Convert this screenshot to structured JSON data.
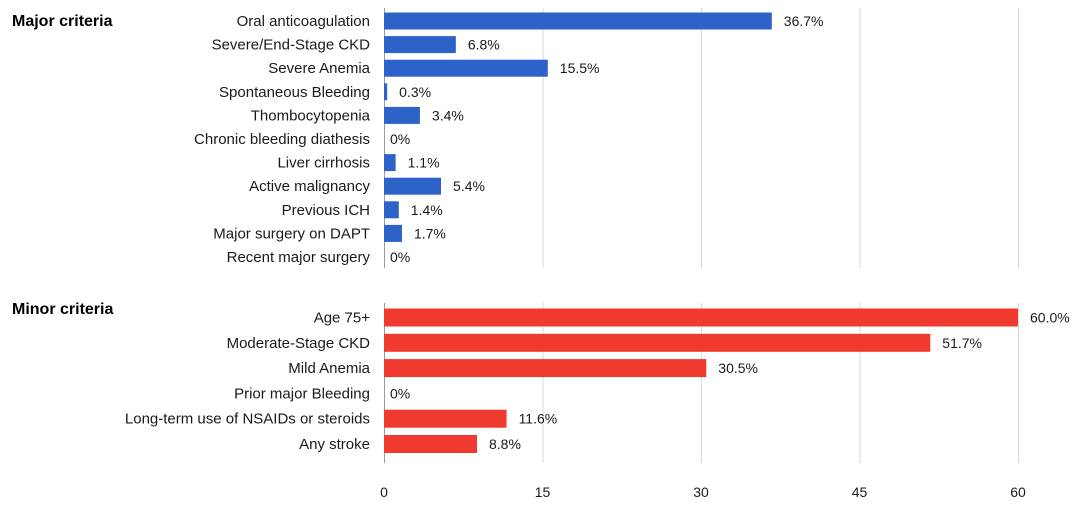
{
  "chart_data": {
    "type": "bar",
    "orientation": "horizontal",
    "x_axis": {
      "min": 0,
      "max": 60,
      "ticks": [
        "0",
        "15",
        "30",
        "45",
        "60"
      ],
      "grid": true
    },
    "panels": [
      {
        "title": "Major criteria",
        "color": "#2d63c8",
        "categories": [
          "Oral anticoagulation",
          "Severe/End-Stage CKD",
          "Severe Anemia",
          "Spontaneous Bleeding",
          "Thombocytopenia",
          "Chronic bleeding diathesis",
          "Liver cirrhosis",
          "Active malignancy",
          "Previous ICH",
          "Major surgery on DAPT",
          "Recent major surgery"
        ],
        "values": [
          36.7,
          6.8,
          15.5,
          0.3,
          3.4,
          0,
          1.1,
          5.4,
          1.4,
          1.7,
          0
        ],
        "labels": [
          "36.7%",
          "6.8%",
          "15.5%",
          "0.3%",
          "3.4%",
          "0%",
          "1.1%",
          "5.4%",
          "1.4%",
          "1.7%",
          "0%"
        ]
      },
      {
        "title": "Minor criteria",
        "color": "#f13a2f",
        "categories": [
          "Age 75+",
          "Moderate-Stage CKD",
          "Mild Anemia",
          "Prior major Bleeding",
          "Long-term use of NSAIDs or steroids",
          "Any stroke"
        ],
        "values": [
          60.0,
          51.7,
          30.5,
          0,
          11.6,
          8.8
        ],
        "labels": [
          "60.0%",
          "51.7%",
          "30.5%",
          "0%",
          "11.6%",
          "8.8%"
        ]
      }
    ]
  }
}
